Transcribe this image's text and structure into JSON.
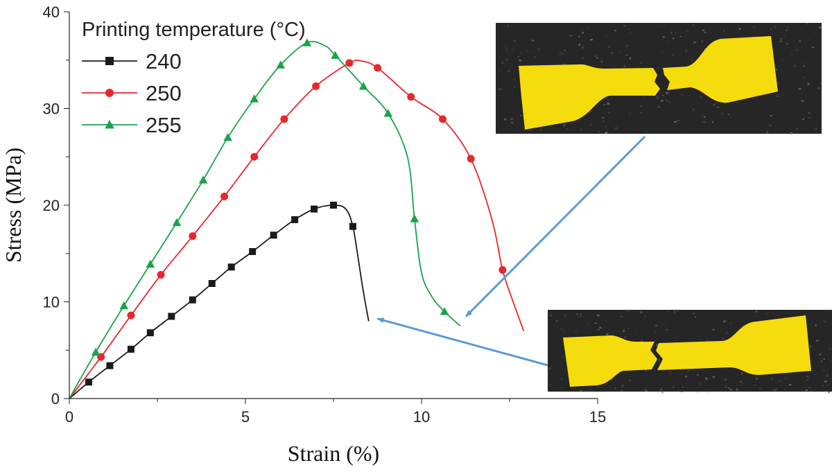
{
  "chart_data": {
    "type": "line",
    "xlabel": "Strain (%)",
    "ylabel": "Stress (MPa)",
    "xlim": [
      0,
      15
    ],
    "ylim": [
      0,
      40
    ],
    "xticks": [
      0,
      5,
      10,
      15
    ],
    "yticks": [
      0,
      10,
      20,
      30,
      40
    ],
    "grid": false,
    "legend": {
      "title": "Printing temperature (°C)",
      "placement": "top-left"
    },
    "series": [
      {
        "name": "240",
        "color": "#1a1a1a",
        "marker": "square",
        "line": [
          [
            0,
            0
          ],
          [
            0.55,
            1.7
          ],
          [
            1.15,
            3.4
          ],
          [
            1.75,
            5.1
          ],
          [
            2.3,
            6.8
          ],
          [
            2.9,
            8.5
          ],
          [
            3.5,
            10.2
          ],
          [
            4.05,
            11.9
          ],
          [
            4.6,
            13.6
          ],
          [
            5.2,
            15.2
          ],
          [
            5.8,
            16.9
          ],
          [
            6.4,
            18.5
          ],
          [
            6.95,
            19.6
          ],
          [
            7.5,
            20.0
          ],
          [
            7.85,
            19.6
          ],
          [
            8.05,
            17.8
          ],
          [
            8.2,
            14.5
          ],
          [
            8.35,
            11.0
          ],
          [
            8.5,
            8.0
          ]
        ],
        "markers": [
          [
            0.55,
            1.7
          ],
          [
            1.15,
            3.4
          ],
          [
            1.75,
            5.1
          ],
          [
            2.3,
            6.8
          ],
          [
            2.9,
            8.5
          ],
          [
            3.5,
            10.2
          ],
          [
            4.05,
            11.9
          ],
          [
            4.6,
            13.6
          ],
          [
            5.2,
            15.2
          ],
          [
            5.8,
            16.9
          ],
          [
            6.4,
            18.5
          ],
          [
            6.95,
            19.6
          ],
          [
            7.5,
            20.0
          ],
          [
            8.05,
            17.8
          ]
        ]
      },
      {
        "name": "250",
        "color": "#e8262d",
        "marker": "circle",
        "line": [
          [
            0,
            0
          ],
          [
            0.9,
            4.3
          ],
          [
            1.75,
            8.6
          ],
          [
            2.6,
            12.8
          ],
          [
            3.5,
            16.8
          ],
          [
            4.4,
            20.9
          ],
          [
            5.25,
            25.0
          ],
          [
            6.1,
            28.9
          ],
          [
            7.0,
            32.3
          ],
          [
            7.95,
            34.7
          ],
          [
            8.3,
            34.9
          ],
          [
            8.75,
            34.2
          ],
          [
            9.7,
            31.2
          ],
          [
            10.6,
            28.9
          ],
          [
            11.4,
            24.8
          ],
          [
            12.0,
            18.5
          ],
          [
            12.3,
            13.3
          ],
          [
            12.6,
            10.0
          ],
          [
            12.9,
            7.0
          ]
        ],
        "markers": [
          [
            0.9,
            4.3
          ],
          [
            1.75,
            8.6
          ],
          [
            2.6,
            12.8
          ],
          [
            3.5,
            16.8
          ],
          [
            4.4,
            20.9
          ],
          [
            5.25,
            25.0
          ],
          [
            6.1,
            28.9
          ],
          [
            7.0,
            32.3
          ],
          [
            7.95,
            34.7
          ],
          [
            8.75,
            34.2
          ],
          [
            9.7,
            31.2
          ],
          [
            10.6,
            28.9
          ],
          [
            11.4,
            24.8
          ],
          [
            12.3,
            13.3
          ]
        ]
      },
      {
        "name": "255",
        "color": "#1aa34a",
        "marker": "triangle",
        "line": [
          [
            0,
            0
          ],
          [
            0.75,
            4.8
          ],
          [
            1.55,
            9.6
          ],
          [
            2.3,
            13.9
          ],
          [
            3.05,
            18.2
          ],
          [
            3.8,
            22.6
          ],
          [
            4.5,
            27.0
          ],
          [
            5.25,
            31.0
          ],
          [
            6.0,
            34.5
          ],
          [
            6.75,
            36.8
          ],
          [
            7.25,
            36.5
          ],
          [
            7.55,
            35.5
          ],
          [
            8.35,
            32.3
          ],
          [
            9.05,
            29.5
          ],
          [
            9.6,
            25.0
          ],
          [
            9.8,
            18.6
          ],
          [
            10.0,
            13.0
          ],
          [
            10.3,
            10.5
          ],
          [
            10.65,
            9.0
          ],
          [
            11.1,
            7.5
          ]
        ],
        "markers": [
          [
            0.75,
            4.8
          ],
          [
            1.55,
            9.6
          ],
          [
            2.3,
            13.9
          ],
          [
            3.05,
            18.2
          ],
          [
            3.8,
            22.6
          ],
          [
            4.5,
            27.0
          ],
          [
            5.25,
            31.0
          ],
          [
            6.0,
            34.5
          ],
          [
            6.75,
            36.8
          ],
          [
            7.55,
            35.5
          ],
          [
            8.35,
            32.3
          ],
          [
            9.05,
            29.5
          ],
          [
            9.8,
            18.6
          ],
          [
            10.65,
            9.0
          ]
        ]
      }
    ],
    "insets": [
      {
        "name": "fractured-specimen-255",
        "subject": "yellow dog-bone tensile specimen, fractured",
        "annotation_target": [
          11.2,
          8.2
        ]
      },
      {
        "name": "fractured-specimen-240",
        "subject": "yellow dog-bone tensile specimen, fractured",
        "annotation_target": [
          8.75,
          8.4
        ]
      }
    ],
    "annotation_color": "#5b9bd5"
  }
}
